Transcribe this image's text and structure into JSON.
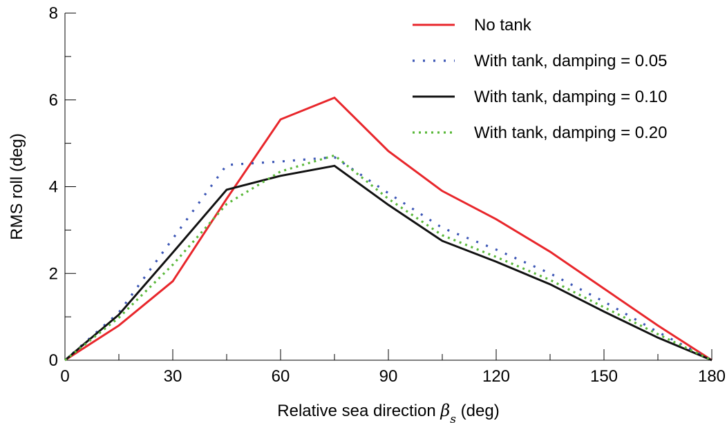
{
  "chart_data": {
    "type": "line",
    "xlabel_prefix": "Relative sea direction ",
    "xlabel_symbol": "β",
    "xlabel_subscript": "s",
    "xlabel_suffix": " (deg)",
    "ylabel": "RMS roll (deg)",
    "xlim": [
      0,
      180
    ],
    "ylim": [
      0,
      8
    ],
    "xticks": [
      0,
      30,
      60,
      90,
      120,
      150,
      180
    ],
    "xticks_minor": [
      15,
      45,
      75,
      105,
      135,
      165
    ],
    "yticks": [
      0,
      2,
      4,
      6,
      8
    ],
    "yticks_minor": [
      1,
      3,
      5,
      7
    ],
    "grid": false,
    "legend_position": "top-right",
    "x": [
      0,
      15,
      30,
      45,
      60,
      75,
      90,
      105,
      120,
      135,
      150,
      165,
      180
    ],
    "series": [
      {
        "name": "No tank",
        "color": "#e8262b",
        "style": "solid",
        "values": [
          0,
          0.8,
          1.82,
          3.72,
          5.55,
          6.05,
          4.82,
          3.9,
          3.25,
          2.5,
          1.65,
          0.8,
          0
        ]
      },
      {
        "name": "With tank, damping = 0.05",
        "color": "#3b55b5",
        "style": "dotted",
        "values": [
          0,
          1.1,
          2.8,
          4.5,
          4.58,
          4.68,
          3.85,
          3.05,
          2.55,
          2.0,
          1.35,
          0.65,
          0
        ]
      },
      {
        "name": "With tank, damping = 0.10",
        "color": "#111111",
        "style": "solid",
        "values": [
          0,
          1.05,
          2.48,
          3.93,
          4.25,
          4.48,
          3.58,
          2.75,
          2.27,
          1.75,
          1.12,
          0.52,
          0
        ]
      },
      {
        "name": "With tank, damping = 0.20",
        "color": "#5ab83a",
        "style": "dotted",
        "values": [
          0,
          0.98,
          2.2,
          3.6,
          4.35,
          4.72,
          3.72,
          2.88,
          2.38,
          1.85,
          1.22,
          0.6,
          0
        ]
      }
    ]
  }
}
